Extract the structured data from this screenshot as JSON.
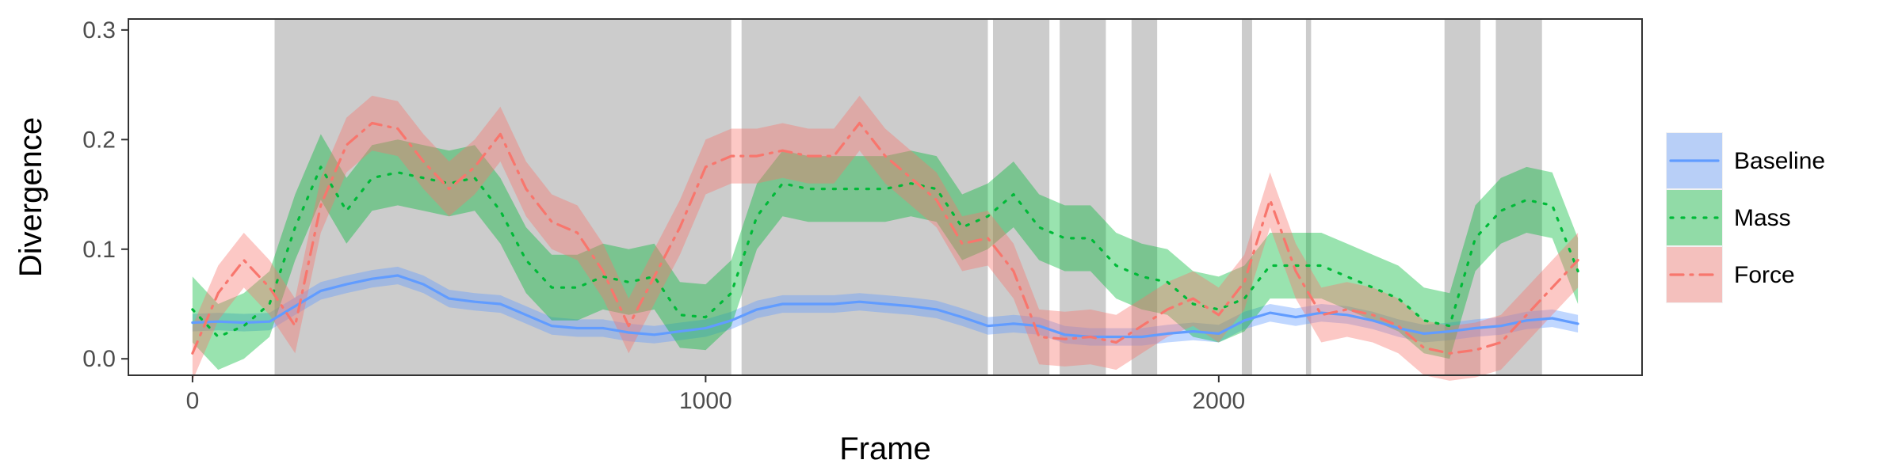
{
  "chart_data": {
    "type": "line",
    "title": "",
    "xlabel": "Frame",
    "ylabel": "Divergence",
    "xlim": [
      -125,
      2825
    ],
    "ylim": [
      -0.015,
      0.31
    ],
    "x_ticks": [
      0,
      1000,
      2000
    ],
    "x_tick_labels": [
      "0",
      "1000",
      "2000"
    ],
    "y_ticks": [
      0.0,
      0.1,
      0.2,
      0.3
    ],
    "y_tick_labels": [
      "0.0",
      "0.1",
      "0.2",
      "0.3"
    ],
    "grid": false,
    "legend_position": "right",
    "shaded_intervals": [
      [
        160,
        1050
      ],
      [
        1070,
        1550
      ],
      [
        1560,
        1670
      ],
      [
        1690,
        1780
      ],
      [
        1830,
        1880
      ],
      [
        2045,
        2065
      ],
      [
        2170,
        2180
      ],
      [
        2440,
        2510
      ],
      [
        2540,
        2630
      ]
    ],
    "series": [
      {
        "name": "Baseline",
        "color": "#619cff",
        "linestyle": "solid",
        "x": [
          0,
          50,
          100,
          150,
          200,
          250,
          300,
          350,
          400,
          450,
          500,
          550,
          600,
          650,
          700,
          750,
          800,
          850,
          900,
          950,
          1000,
          1050,
          1100,
          1150,
          1200,
          1250,
          1300,
          1350,
          1400,
          1450,
          1500,
          1550,
          1600,
          1650,
          1700,
          1750,
          1800,
          1850,
          1900,
          1950,
          2000,
          2050,
          2100,
          2150,
          2200,
          2250,
          2300,
          2350,
          2400,
          2450,
          2500,
          2550,
          2600,
          2650,
          2700
        ],
        "y": [
          0.033,
          0.034,
          0.033,
          0.034,
          0.048,
          0.062,
          0.068,
          0.073,
          0.076,
          0.068,
          0.055,
          0.052,
          0.05,
          0.04,
          0.03,
          0.028,
          0.028,
          0.024,
          0.022,
          0.025,
          0.028,
          0.035,
          0.045,
          0.05,
          0.05,
          0.05,
          0.052,
          0.05,
          0.048,
          0.045,
          0.038,
          0.03,
          0.032,
          0.03,
          0.022,
          0.02,
          0.02,
          0.02,
          0.023,
          0.025,
          0.023,
          0.035,
          0.042,
          0.038,
          0.042,
          0.04,
          0.035,
          0.028,
          0.023,
          0.025,
          0.028,
          0.03,
          0.035,
          0.037,
          0.032
        ],
        "band": 0.008
      },
      {
        "name": "Mass",
        "color": "#00ba38",
        "linestyle": "dotted",
        "x": [
          0,
          50,
          100,
          150,
          200,
          250,
          300,
          350,
          400,
          450,
          500,
          550,
          600,
          650,
          700,
          750,
          800,
          850,
          900,
          950,
          1000,
          1050,
          1100,
          1150,
          1200,
          1250,
          1300,
          1350,
          1400,
          1450,
          1500,
          1550,
          1600,
          1650,
          1700,
          1750,
          1800,
          1850,
          1900,
          1950,
          2000,
          2050,
          2100,
          2150,
          2200,
          2250,
          2300,
          2350,
          2400,
          2450,
          2500,
          2550,
          2600,
          2650,
          2700
        ],
        "y": [
          0.045,
          0.02,
          0.03,
          0.05,
          0.12,
          0.175,
          0.135,
          0.165,
          0.17,
          0.165,
          0.16,
          0.165,
          0.135,
          0.09,
          0.065,
          0.065,
          0.075,
          0.07,
          0.075,
          0.04,
          0.038,
          0.06,
          0.13,
          0.16,
          0.155,
          0.155,
          0.155,
          0.155,
          0.16,
          0.155,
          0.12,
          0.13,
          0.15,
          0.12,
          0.11,
          0.11,
          0.085,
          0.075,
          0.07,
          0.05,
          0.045,
          0.055,
          0.085,
          0.085,
          0.085,
          0.075,
          0.065,
          0.055,
          0.035,
          0.03,
          0.11,
          0.135,
          0.145,
          0.14,
          0.08
        ],
        "band": 0.03
      },
      {
        "name": "Force",
        "color": "#f8766d",
        "linestyle": "dashdot",
        "x": [
          0,
          50,
          100,
          150,
          200,
          250,
          300,
          350,
          400,
          450,
          500,
          550,
          600,
          650,
          700,
          750,
          800,
          850,
          900,
          950,
          1000,
          1050,
          1100,
          1150,
          1200,
          1250,
          1300,
          1350,
          1400,
          1450,
          1500,
          1550,
          1600,
          1650,
          1700,
          1750,
          1800,
          1850,
          1900,
          1950,
          2000,
          2050,
          2100,
          2150,
          2200,
          2250,
          2300,
          2350,
          2400,
          2450,
          2500,
          2550,
          2600,
          2650,
          2700
        ],
        "y": [
          0.005,
          0.06,
          0.09,
          0.065,
          0.03,
          0.14,
          0.195,
          0.215,
          0.21,
          0.18,
          0.155,
          0.175,
          0.205,
          0.155,
          0.125,
          0.115,
          0.08,
          0.03,
          0.075,
          0.12,
          0.175,
          0.185,
          0.185,
          0.19,
          0.185,
          0.185,
          0.215,
          0.185,
          0.165,
          0.145,
          0.105,
          0.11,
          0.08,
          0.02,
          0.018,
          0.02,
          0.015,
          0.03,
          0.045,
          0.055,
          0.04,
          0.07,
          0.145,
          0.08,
          0.04,
          0.045,
          0.04,
          0.03,
          0.01,
          0.005,
          0.008,
          0.015,
          0.04,
          0.065,
          0.09
        ],
        "band": 0.025
      }
    ]
  }
}
